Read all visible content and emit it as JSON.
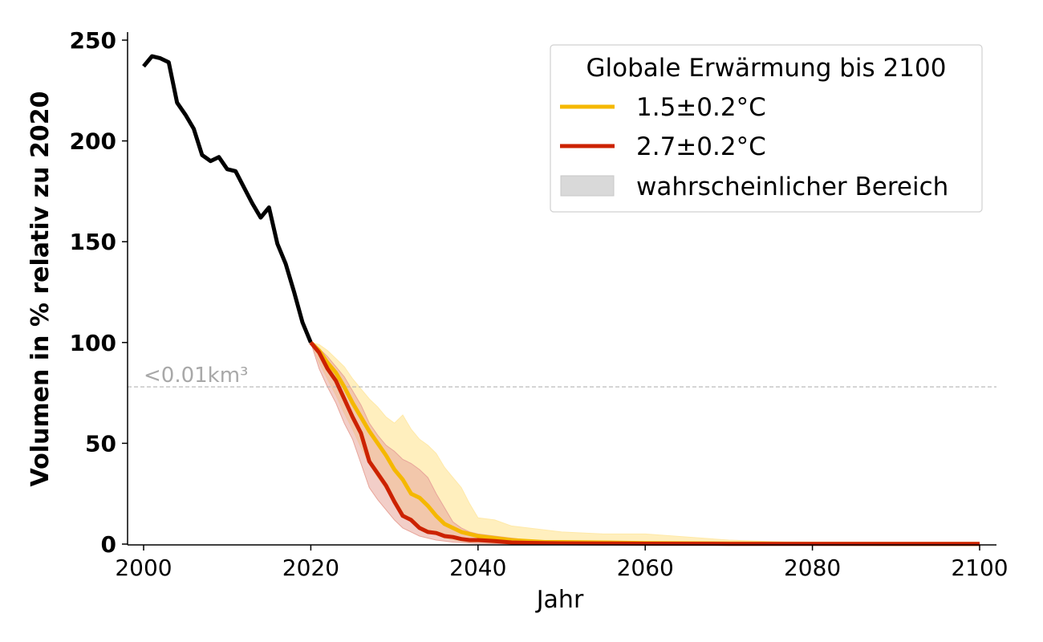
{
  "chart_data": {
    "type": "line",
    "xlabel": "Jahr",
    "ylabel": "Volumen in % relativ zu 2020",
    "xlim": [
      1998,
      2102
    ],
    "ylim": [
      0,
      255
    ],
    "x_ticks": [
      2000,
      2020,
      2040,
      2060,
      2080,
      2100
    ],
    "y_ticks": [
      0,
      50,
      100,
      150,
      200,
      250
    ],
    "grid": false,
    "legend": {
      "title": "Globale Erwärmung bis 2100",
      "position": "top-right",
      "entries": [
        "1.5±0.2°C",
        "2.7±0.2°C",
        "wahrscheinlicher Bereich"
      ]
    },
    "threshold": {
      "y": 78,
      "label": "<0.01km³",
      "color": "#b5b5b5"
    },
    "colors": {
      "historical": "#000000",
      "s15": "#f5b800",
      "s15_band": "#ffe9a8",
      "s27": "#cc2200",
      "s27_band": "#e8a59a",
      "legend_patch": "#d9d9d9"
    },
    "historical": {
      "x": [
        2000,
        2001,
        2002,
        2003,
        2004,
        2005,
        2006,
        2007,
        2008,
        2009,
        2010,
        2011,
        2012,
        2013,
        2014,
        2015,
        2016,
        2017,
        2018,
        2019,
        2020
      ],
      "y": [
        237,
        242,
        241,
        239,
        219,
        213,
        206,
        193,
        190,
        192,
        186,
        185,
        177,
        169,
        162,
        167,
        149,
        139,
        125,
        110,
        100
      ]
    },
    "series": [
      {
        "name": "1.5±0.2°C",
        "x": [
          2020,
          2021,
          2022,
          2023,
          2024,
          2025,
          2026,
          2027,
          2028,
          2029,
          2030,
          2031,
          2032,
          2033,
          2034,
          2035,
          2036,
          2037,
          2038,
          2039,
          2040,
          2042,
          2044,
          2046,
          2048,
          2050,
          2055,
          2060,
          2070,
          2080,
          2090,
          2100
        ],
        "y": [
          100,
          96,
          90,
          85,
          78,
          70,
          63,
          56,
          50,
          44,
          37,
          32,
          25,
          23,
          19,
          14,
          10,
          8,
          6,
          5,
          4,
          3,
          2,
          1.5,
          1,
          1,
          0.8,
          0.5,
          0.3,
          0.2,
          0.1,
          0.1
        ],
        "lower": [
          100,
          90,
          82,
          74,
          65,
          57,
          48,
          40,
          33,
          27,
          21,
          16,
          12,
          9,
          7,
          5,
          3,
          2,
          1.5,
          1,
          1,
          0.5,
          0.3,
          0.2,
          0.1,
          0.1,
          0,
          0,
          0,
          0,
          0,
          0
        ],
        "upper": [
          100,
          99,
          96,
          92,
          88,
          82,
          77,
          72,
          68,
          63,
          60,
          64,
          57,
          52,
          49,
          45,
          38,
          33,
          28,
          20,
          13,
          12,
          9,
          8,
          7,
          6,
          5,
          5,
          2,
          0.5,
          0.3,
          0.2
        ]
      },
      {
        "name": "2.7±0.2°C",
        "x": [
          2020,
          2021,
          2022,
          2023,
          2024,
          2025,
          2026,
          2027,
          2028,
          2029,
          2030,
          2031,
          2032,
          2033,
          2034,
          2035,
          2036,
          2037,
          2038,
          2039,
          2040,
          2042,
          2044,
          2046,
          2048,
          2050,
          2055,
          2060,
          2070,
          2080,
          2090,
          2100
        ],
        "y": [
          100,
          95,
          87,
          81,
          72,
          63,
          55,
          41,
          35,
          29,
          21,
          14,
          12,
          8,
          6,
          5.5,
          4,
          3.5,
          2.5,
          2,
          2,
          1.5,
          0.8,
          0.6,
          0.5,
          0.4,
          0.3,
          0.2,
          0.1,
          0.1,
          0.1,
          0.1
        ],
        "lower": [
          100,
          87,
          78,
          70,
          60,
          52,
          40,
          28,
          22,
          17,
          12,
          8,
          6,
          4,
          3,
          2,
          1.5,
          1,
          0.8,
          0.5,
          0.3,
          0.2,
          0.1,
          0.1,
          0.1,
          0,
          0,
          0,
          0,
          0,
          0,
          0
        ],
        "upper": [
          100,
          97,
          93,
          88,
          83,
          76,
          69,
          60,
          54,
          49,
          46,
          42,
          40,
          37,
          33,
          25,
          18,
          11,
          8,
          6,
          5,
          4,
          3,
          2,
          1.5,
          1.2,
          0.8,
          0.5,
          0.3,
          0.2,
          0.1,
          0.1
        ]
      }
    ]
  }
}
